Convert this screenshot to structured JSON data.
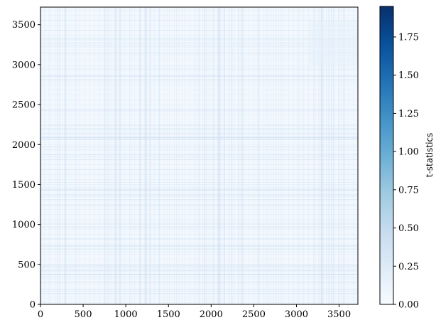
{
  "chart_data": {
    "type": "heatmap",
    "title": "",
    "xlabel": "",
    "ylabel": "",
    "xlim": [
      0,
      3720
    ],
    "ylim": [
      0,
      3720
    ],
    "xticks": [
      0,
      500,
      1000,
      1500,
      2000,
      2500,
      3000,
      3500
    ],
    "yticks": [
      0,
      500,
      1000,
      1500,
      2000,
      2500,
      3000,
      3500
    ],
    "xtick_labels": [
      "0",
      "500",
      "1000",
      "1500",
      "2000",
      "2500",
      "3000",
      "3500"
    ],
    "ytick_labels": [
      "0",
      "500",
      "1000",
      "1500",
      "2000",
      "2500",
      "3000",
      "3500"
    ],
    "colormap": "Blues",
    "colormap_colors": [
      "#f7fbff",
      "#deebf7",
      "#c6dbef",
      "#9ecae1",
      "#6baed6",
      "#4292c6",
      "#2171b5",
      "#08519c",
      "#08306b"
    ],
    "value_range": [
      0,
      1.95
    ],
    "typical_value": 0.03,
    "colorbar": {
      "label": "t-statistics",
      "ticks": [
        0.0,
        0.25,
        0.5,
        0.75,
        1.0,
        1.25,
        1.5,
        1.75
      ],
      "tick_labels": [
        "0.00",
        "0.25",
        "0.50",
        "0.75",
        "1.00",
        "1.25",
        "1.50",
        "1.75"
      ],
      "range": [
        0,
        1.95
      ]
    }
  }
}
